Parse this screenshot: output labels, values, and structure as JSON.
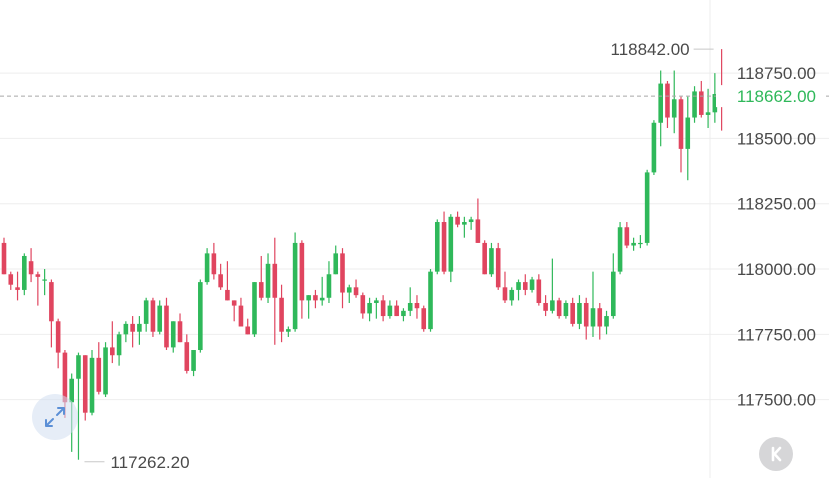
{
  "chart_data": {
    "type": "candlestick",
    "title": "",
    "xlabel": "",
    "ylabel": "",
    "ylim": [
      117200,
      119030
    ],
    "y_ticks": [
      "118750.00",
      "118500.00",
      "118250.00",
      "118000.00",
      "117750.00",
      "117500.00"
    ],
    "y_tick_values": [
      118750,
      118500,
      118250,
      118000,
      117750,
      117500
    ],
    "grid": true,
    "high_label": "118842.00",
    "high_value": 118842,
    "low_label": "117262.20",
    "low_value": 117262.2,
    "current_label": "118662.00",
    "current_value": 118662,
    "colors": {
      "up": "#2fb85a",
      "down": "#e0455f",
      "grid": "#eeeeee",
      "current": "#2fb85a"
    },
    "candles": [
      [
        118100,
        118120,
        117980,
        117980
      ],
      [
        117980,
        117990,
        117920,
        117940
      ],
      [
        117930,
        117990,
        117880,
        117920
      ],
      [
        117920,
        118060,
        117900,
        118050
      ],
      [
        118030,
        118080,
        117950,
        117980
      ],
      [
        117980,
        117990,
        117860,
        117970
      ],
      [
        117960,
        118000,
        117900,
        117960
      ],
      [
        117950,
        117960,
        117700,
        117800
      ],
      [
        117800,
        117810,
        117620,
        117680
      ],
      [
        117680,
        117690,
        117430,
        117490
      ],
      [
        117490,
        117600,
        117300,
        117580
      ],
      [
        117580,
        117680,
        117270,
        117670
      ],
      [
        117670,
        117670,
        117420,
        117450
      ],
      [
        117450,
        117690,
        117440,
        117660
      ],
      [
        117660,
        117720,
        117520,
        117530
      ],
      [
        117520,
        117720,
        117510,
        117700
      ],
      [
        117700,
        117800,
        117640,
        117670
      ],
      [
        117670,
        117760,
        117630,
        117750
      ],
      [
        117750,
        117800,
        117720,
        117790
      ],
      [
        117790,
        117820,
        117700,
        117760
      ],
      [
        117760,
        117820,
        117710,
        117790
      ],
      [
        117790,
        117890,
        117760,
        117880
      ],
      [
        117880,
        117890,
        117740,
        117760
      ],
      [
        117760,
        117880,
        117750,
        117860
      ],
      [
        117860,
        117890,
        117690,
        117700
      ],
      [
        117700,
        117800,
        117680,
        117800
      ],
      [
        117800,
        117830,
        117720,
        117720
      ],
      [
        117720,
        117750,
        117600,
        117610
      ],
      [
        117610,
        117690,
        117590,
        117690
      ],
      [
        117690,
        117960,
        117680,
        117950
      ],
      [
        117950,
        118080,
        117940,
        118060
      ],
      [
        118060,
        118100,
        117960,
        117980
      ],
      [
        117980,
        118020,
        117920,
        117930
      ],
      [
        117920,
        118030,
        117880,
        117880
      ],
      [
        117880,
        117880,
        117800,
        117860
      ],
      [
        117860,
        117890,
        117780,
        117780
      ],
      [
        117780,
        117810,
        117750,
        117750
      ],
      [
        117750,
        117950,
        117740,
        117950
      ],
      [
        117950,
        118050,
        117880,
        117890
      ],
      [
        117890,
        118060,
        117870,
        118020
      ],
      [
        118020,
        118120,
        117710,
        117890
      ],
      [
        117890,
        117940,
        117720,
        117760
      ],
      [
        117760,
        117780,
        117740,
        117770
      ],
      [
        117770,
        118140,
        117760,
        118100
      ],
      [
        118100,
        118110,
        117810,
        117880
      ],
      [
        117880,
        117900,
        117810,
        117900
      ],
      [
        117900,
        117920,
        117850,
        117880
      ],
      [
        117880,
        117970,
        117860,
        117890
      ],
      [
        117890,
        118030,
        117870,
        117980
      ],
      [
        117980,
        118090,
        117980,
        118060
      ],
      [
        118060,
        118080,
        117850,
        117910
      ],
      [
        117910,
        117940,
        117870,
        117930
      ],
      [
        117930,
        117960,
        117890,
        117900
      ],
      [
        117900,
        117910,
        117810,
        117830
      ],
      [
        117830,
        117890,
        117800,
        117870
      ],
      [
        117870,
        117890,
        117810,
        117880
      ],
      [
        117880,
        117900,
        117800,
        117820
      ],
      [
        117820,
        117880,
        117810,
        117860
      ],
      [
        117860,
        117880,
        117820,
        117820
      ],
      [
        117820,
        117850,
        117800,
        117840
      ],
      [
        117840,
        117930,
        117820,
        117870
      ],
      [
        117870,
        117900,
        117810,
        117850
      ],
      [
        117850,
        117860,
        117760,
        117770
      ],
      [
        117770,
        118000,
        117760,
        117990
      ],
      [
        117990,
        118190,
        117980,
        118180
      ],
      [
        118180,
        118220,
        117980,
        117990
      ],
      [
        117990,
        118210,
        117950,
        118200
      ],
      [
        118200,
        118220,
        118160,
        118170
      ],
      [
        118170,
        118200,
        118120,
        118180
      ],
      [
        118180,
        118200,
        118150,
        118190
      ],
      [
        118190,
        118270,
        118100,
        118100
      ],
      [
        118100,
        118110,
        117980,
        117980
      ],
      [
        117980,
        118100,
        117970,
        118080
      ],
      [
        118080,
        118100,
        117920,
        117930
      ],
      [
        117930,
        117990,
        117870,
        117880
      ],
      [
        117880,
        117930,
        117860,
        117920
      ],
      [
        117920,
        117960,
        117880,
        117950
      ],
      [
        117950,
        117980,
        117900,
        117920
      ],
      [
        117920,
        117970,
        117910,
        117960
      ],
      [
        117960,
        117980,
        117860,
        117870
      ],
      [
        117870,
        117900,
        117820,
        117840
      ],
      [
        117840,
        118040,
        117830,
        117880
      ],
      [
        117880,
        117890,
        117810,
        117820
      ],
      [
        117820,
        117880,
        117810,
        117870
      ],
      [
        117870,
        117890,
        117780,
        117790
      ],
      [
        117790,
        117900,
        117770,
        117870
      ],
      [
        117870,
        117890,
        117730,
        117780
      ],
      [
        117780,
        117990,
        117740,
        117850
      ],
      [
        117850,
        117870,
        117730,
        117780
      ],
      [
        117780,
        117840,
        117750,
        117820
      ],
      [
        117820,
        118060,
        117810,
        117990
      ],
      [
        117990,
        118180,
        117980,
        118160
      ],
      [
        118160,
        118180,
        118080,
        118090
      ],
      [
        118090,
        118120,
        118070,
        118100
      ],
      [
        118100,
        118130,
        118080,
        118100
      ],
      [
        118100,
        118380,
        118090,
        118370
      ],
      [
        118370,
        118570,
        118360,
        118560
      ],
      [
        118560,
        118760,
        118470,
        118710
      ],
      [
        118710,
        118720,
        118540,
        118580
      ],
      [
        118580,
        118760,
        118520,
        118650
      ],
      [
        118650,
        118660,
        118370,
        118460
      ],
      [
        118460,
        118660,
        118340,
        118580
      ],
      [
        118580,
        118700,
        118560,
        118680
      ],
      [
        118680,
        118720,
        118580,
        118590
      ],
      [
        118590,
        118690,
        118540,
        118600
      ],
      [
        118600,
        118750,
        118560,
        118670
      ],
      [
        118670,
        118842,
        118530,
        118662
      ]
    ]
  }
}
